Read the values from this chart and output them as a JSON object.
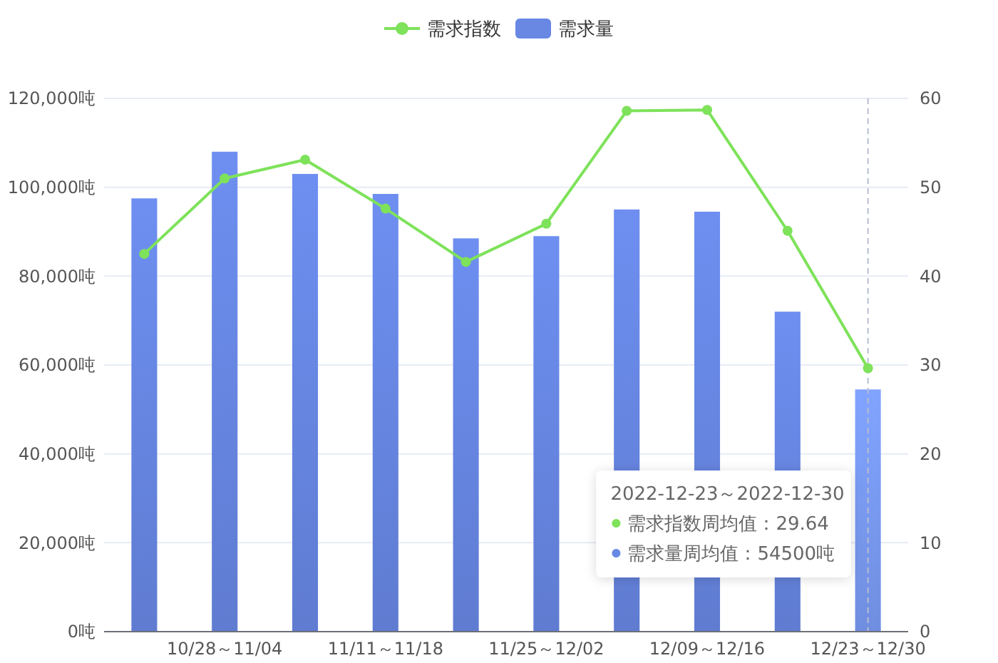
{
  "chart_data": {
    "type": "bar",
    "categories": [
      null,
      "10/28～11/04",
      null,
      "11/11～11/18",
      null,
      "11/25～12/02",
      null,
      "12/09～12/16",
      null,
      "12/23～12/30"
    ],
    "series": [
      {
        "name": "需求指数",
        "type": "line",
        "axis": "y2",
        "color": "#7ee25a",
        "values": [
          42.5,
          51.0,
          53.1,
          47.6,
          41.6,
          45.9,
          58.6,
          58.7,
          45.1,
          29.64
        ]
      },
      {
        "name": "需求量",
        "color": "#6888e4",
        "colors": [
          "#6888e4",
          "#6888e4",
          "#6888e4",
          "#6888e4",
          "#6888e4",
          "#6888e4",
          "#6888e4",
          "#6888e4",
          "#6888e4",
          "#7a9bf5"
        ],
        "values": [
          97500,
          108000,
          103000,
          98500,
          88500,
          89000,
          95000,
          94500,
          72000,
          54500
        ]
      }
    ],
    "ylim": [
      0,
      120000
    ],
    "yticks": [
      {
        "value": 0,
        "label": "0吨"
      },
      {
        "value": 20000,
        "label": "20,000吨"
      },
      {
        "value": 40000,
        "label": "40,000吨"
      },
      {
        "value": 60000,
        "label": "60,000吨"
      },
      {
        "value": 80000,
        "label": "80,000吨"
      },
      {
        "value": 100000,
        "label": "100,000吨"
      },
      {
        "value": 120000,
        "label": "120,000吨"
      }
    ],
    "y2lim": [
      0,
      60
    ],
    "y2ticks": [
      0,
      10,
      20,
      30,
      40,
      50,
      60
    ],
    "grid": "y",
    "legend": "top",
    "marker": "circle",
    "ref_lines": [
      {
        "axis": "x",
        "value": "12/23～12/30",
        "color": "#b8bcd0",
        "line_style": "dashed"
      }
    ],
    "annotations": [
      "2022-12-23～2022-12-30",
      "需求指数周均值：29.64",
      "需求量周均值：54500吨"
    ]
  }
}
